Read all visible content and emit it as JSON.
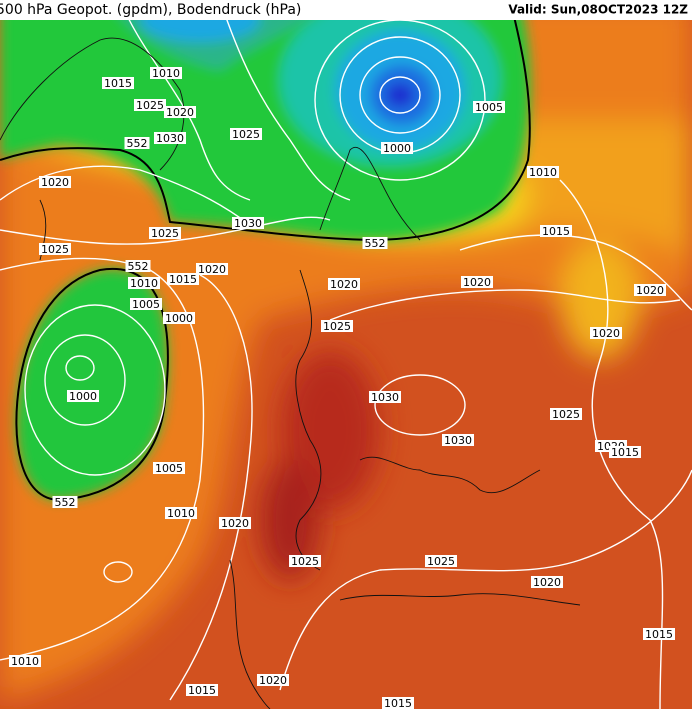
{
  "header": {
    "title": "500 hPa Geopot. (gpdm), Bodendruck (hPa)",
    "valid": "Valid: Sun,08OCT2023 12Z"
  },
  "contour_labels": [
    "1015",
    "1010",
    "1025",
    "1020",
    "1030",
    "552",
    "1025",
    "1020",
    "1025",
    "1030",
    "1025",
    "552",
    "1000",
    "1005",
    "1010",
    "1015",
    "552",
    "1010",
    "1015",
    "1020",
    "1005",
    "1000",
    "1020",
    "1020",
    "1020",
    "1020",
    "1025",
    "1000",
    "1030",
    "1025",
    "1030",
    "1020",
    "1015",
    "1005",
    "552",
    "1010",
    "1020",
    "1025",
    "1025",
    "1020",
    "1015",
    "1010",
    "1015",
    "1020",
    "1015"
  ]
}
